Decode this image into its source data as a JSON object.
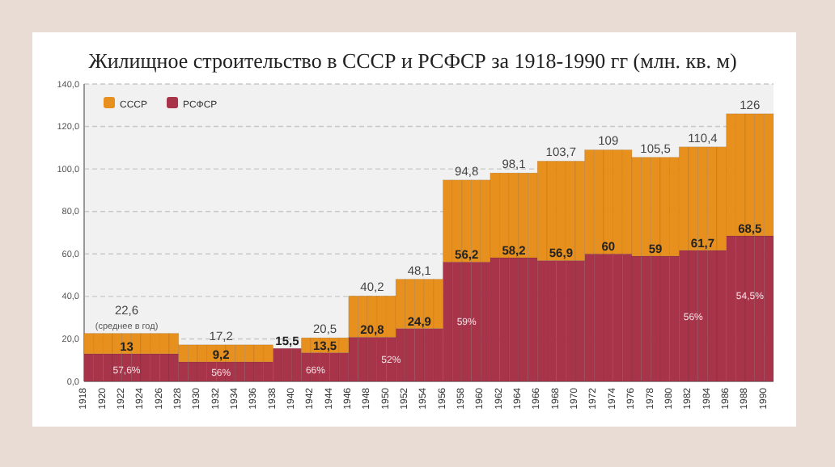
{
  "chart_data": {
    "type": "bar",
    "stacked": true,
    "title": "Жилищное строительство в СССР и РСФСР за 1918-1990 гг (млн. кв. м)",
    "categories": [
      "1918",
      null,
      "1920",
      null,
      "1922",
      null,
      "1924",
      null,
      "1926",
      null,
      "1928",
      null,
      "1930",
      null,
      "1932",
      null,
      "1934",
      null,
      "1936",
      null,
      "1938",
      null,
      "1940",
      null,
      "1942",
      null,
      "1944",
      null,
      "1946",
      null,
      "1948",
      null,
      "1950",
      null,
      "1952",
      null,
      "1954",
      null,
      "1956",
      null,
      "1958",
      null,
      "1960",
      null,
      "1962",
      null,
      "1964",
      null,
      "1966",
      null,
      "1968",
      null,
      "1970",
      null,
      "1972",
      null,
      "1974",
      null,
      "1976",
      null,
      "1978",
      null,
      "1980",
      null,
      "1982",
      null,
      "1984",
      null,
      "1986",
      null,
      "1988",
      null,
      "1990"
    ],
    "series": [
      {
        "name": "РСФСР",
        "color": "#a8344a",
        "values": [
          13,
          13,
          13,
          13,
          13,
          13,
          13,
          13,
          13,
          13,
          9.2,
          9.2,
          9.2,
          9.2,
          9.2,
          9.2,
          9.2,
          9.2,
          9.2,
          9.2,
          15.5,
          15.5,
          15.5,
          13.5,
          13.5,
          13.5,
          13.5,
          13.5,
          20.8,
          20.8,
          20.8,
          20.8,
          20.8,
          24.9,
          24.9,
          24.9,
          24.9,
          24.9,
          56.2,
          56.2,
          56.2,
          56.2,
          56.2,
          58.2,
          58.2,
          58.2,
          58.2,
          58.2,
          56.9,
          56.9,
          56.9,
          56.9,
          56.9,
          60,
          60,
          60,
          60,
          60,
          59,
          59,
          59,
          59,
          59,
          61.7,
          61.7,
          61.7,
          61.7,
          61.7,
          68.5,
          68.5,
          68.5,
          68.5,
          68.5
        ],
        "value_labels": [
          null,
          null,
          null,
          null,
          "13",
          null,
          null,
          null,
          null,
          null,
          null,
          null,
          null,
          null,
          "9,2",
          null,
          null,
          null,
          null,
          null,
          null,
          "15,5",
          null,
          null,
          null,
          "13,5",
          null,
          null,
          null,
          null,
          "20,8",
          null,
          null,
          null,
          null,
          "24,9",
          null,
          null,
          null,
          null,
          "56,2",
          null,
          null,
          null,
          null,
          "58,2",
          null,
          null,
          null,
          null,
          "56,9",
          null,
          null,
          null,
          null,
          "60",
          null,
          null,
          null,
          null,
          "59",
          null,
          null,
          null,
          null,
          "61,7",
          null,
          null,
          null,
          null,
          "68,5",
          null,
          null
        ]
      },
      {
        "name": "СССР",
        "color": "#e8901e",
        "values": [
          9.6,
          9.6,
          9.6,
          9.6,
          9.6,
          9.6,
          9.6,
          9.6,
          9.6,
          9.6,
          8,
          8,
          8,
          8,
          8,
          8,
          8,
          8,
          8,
          8,
          null,
          null,
          null,
          7,
          7,
          7,
          7,
          7,
          19.4,
          19.4,
          19.4,
          19.4,
          19.4,
          23.2,
          23.2,
          23.2,
          23.2,
          23.2,
          38.6,
          38.6,
          38.6,
          38.6,
          38.6,
          39.9,
          39.9,
          39.9,
          39.9,
          39.9,
          46.8,
          46.8,
          46.8,
          46.8,
          46.8,
          49,
          49,
          49,
          49,
          49,
          46.5,
          46.5,
          46.5,
          46.5,
          46.5,
          48.7,
          48.7,
          48.7,
          48.7,
          48.7,
          57.5,
          57.5,
          57.5,
          57.5,
          57.5
        ]
      }
    ],
    "totals": [
      null,
      null,
      null,
      null,
      "22,6",
      null,
      null,
      null,
      null,
      null,
      null,
      null,
      null,
      null,
      "17,2",
      null,
      null,
      null,
      null,
      null,
      null,
      null,
      null,
      null,
      null,
      "20,5",
      null,
      null,
      null,
      null,
      "40,2",
      null,
      null,
      null,
      null,
      "48,1",
      null,
      null,
      null,
      null,
      "94,8",
      null,
      null,
      null,
      null,
      "98,1",
      null,
      null,
      null,
      null,
      "103,7",
      null,
      null,
      null,
      null,
      "109",
      null,
      null,
      null,
      null,
      "105,5",
      null,
      null,
      null,
      null,
      "110,4",
      null,
      null,
      null,
      null,
      "126",
      null,
      null
    ],
    "ylim": [
      0,
      140
    ],
    "yticks": [
      {
        "value": 0,
        "label": "0,0"
      },
      {
        "value": 20,
        "label": "20,0"
      },
      {
        "value": 40,
        "label": "40,0"
      },
      {
        "value": 60,
        "label": "60,0"
      },
      {
        "value": 80,
        "label": "80,0"
      },
      {
        "value": 100,
        "label": "100,0"
      },
      {
        "value": 120,
        "label": "120,0"
      },
      {
        "value": 140,
        "label": "140,0"
      }
    ],
    "grid": "y",
    "legend": "top left",
    "annotations": [
      "(среднее в год)",
      {
        "text": "57,6%",
        "x": "1922",
        "y": 5
      },
      {
        "text": "56%",
        "x": "1932",
        "y": 4
      },
      {
        "text": "66%",
        "x": "1942",
        "y": 5
      },
      {
        "text": "52%",
        "x": "1950",
        "y": 10
      },
      {
        "text": "59%",
        "x": "1958",
        "y": 28
      },
      {
        "text": "56%",
        "x": "1982",
        "y": 30
      },
      {
        "text": "54,5%",
        "x": "1988",
        "y": 40
      }
    ]
  }
}
